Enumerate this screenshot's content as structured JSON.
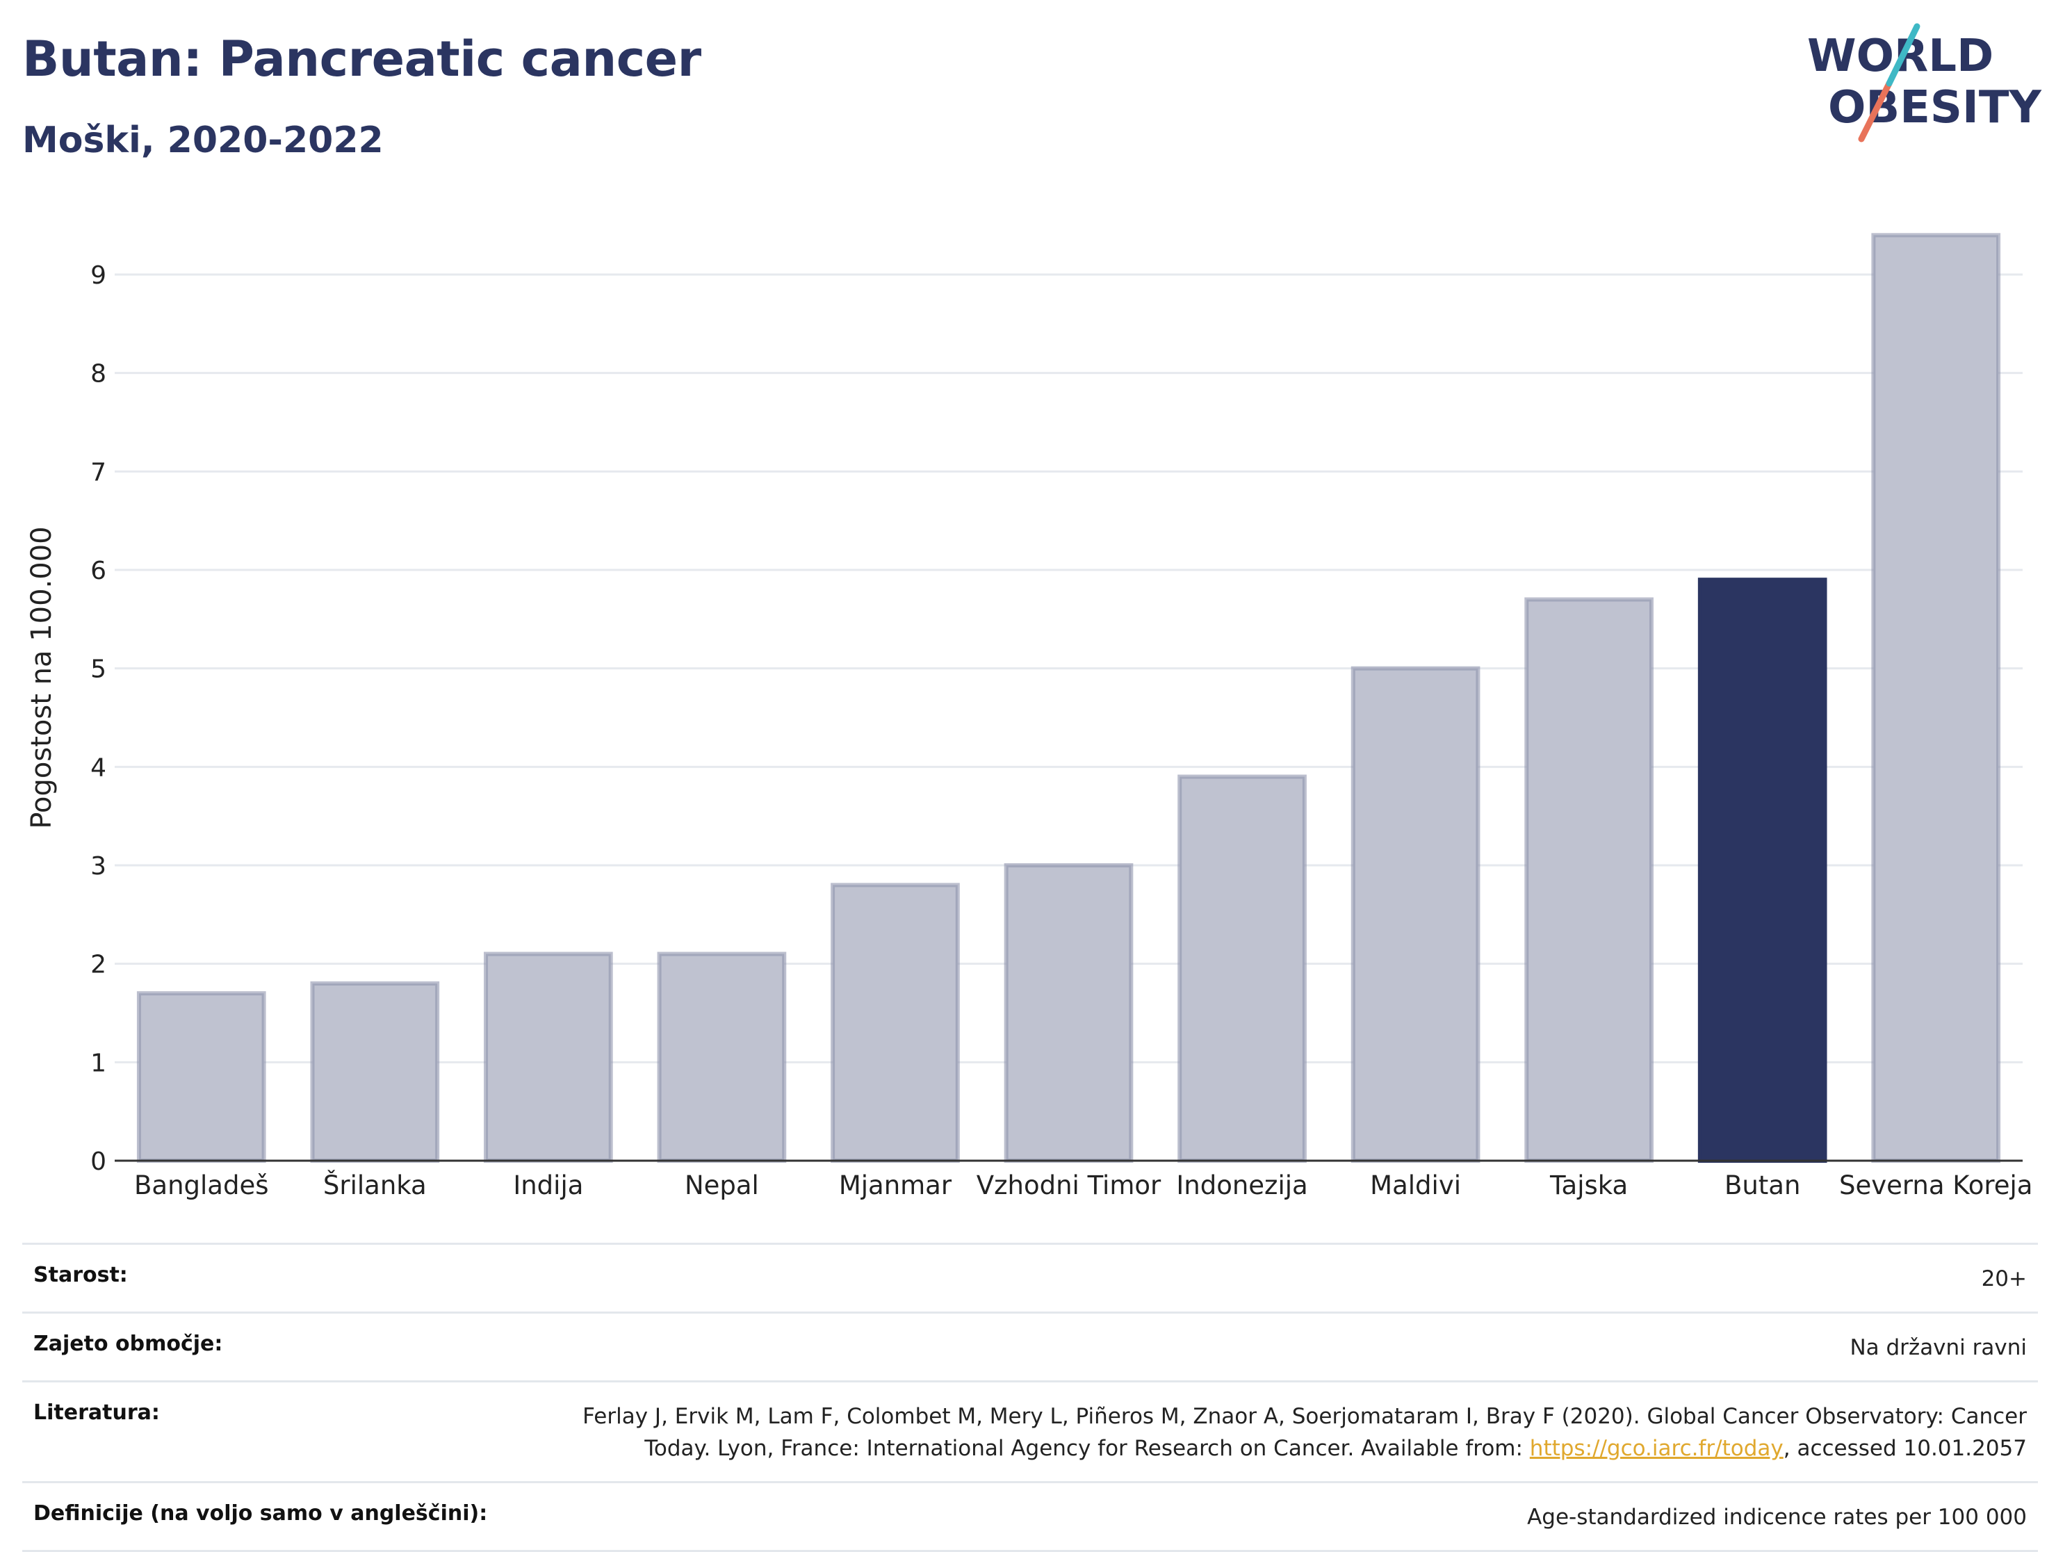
{
  "header": {
    "title": "Butan: Pancreatic cancer",
    "subtitle": "Moški, 2020-2022"
  },
  "logo": {
    "line1": "WORLD",
    "line2": "OBESITY"
  },
  "colors": {
    "highlight": "#2b3561",
    "bar_fill": "#bfc2d0",
    "bar_stroke": "#8f94ad",
    "logo_teal": "#3fb8c5",
    "logo_coral": "#e8735a",
    "link": "#e0a82e"
  },
  "chart_data": {
    "type": "bar",
    "categories": [
      "Bangladeš",
      "Šrilanka",
      "Indija",
      "Nepal",
      "Mjanmar",
      "Vzhodni Timor",
      "Indonezija",
      "Maldivi",
      "Tajska",
      "Butan",
      "Severna Koreja"
    ],
    "values": [
      1.7,
      1.8,
      2.1,
      2.1,
      2.8,
      3.0,
      3.9,
      5.0,
      5.7,
      5.9,
      9.4
    ],
    "highlight": "Butan",
    "ylabel": "Pogostost na 100.000",
    "xlabel": "",
    "ylim": [
      0,
      9.6
    ],
    "yticks": [
      0,
      1,
      2,
      3,
      4,
      5,
      6,
      7,
      8,
      9
    ],
    "grid": true
  },
  "meta": {
    "age_label": "Starost:",
    "age_value": "20+",
    "coverage_label": "Zajeto območje:",
    "coverage_value": "Na državni ravni",
    "reference_label": "Literatura:",
    "reference_line1": "Ferlay J, Ervik M, Lam F, Colombet M, Mery L, Piñeros M, Znaor A, Soerjomataram I, Bray F (2020). Global Cancer Observatory: Cancer",
    "reference_line2_pre": "Today. Lyon, France: International Agency for Research on Cancer. Available from: ",
    "reference_link": "https://gco.iarc.fr/today",
    "reference_line2_post": ", accessed 10.01.2057",
    "definitions_label": "Definicije (na voljo samo v angleščini):",
    "definitions_value": "Age-standardized indicence rates per 100 000"
  }
}
